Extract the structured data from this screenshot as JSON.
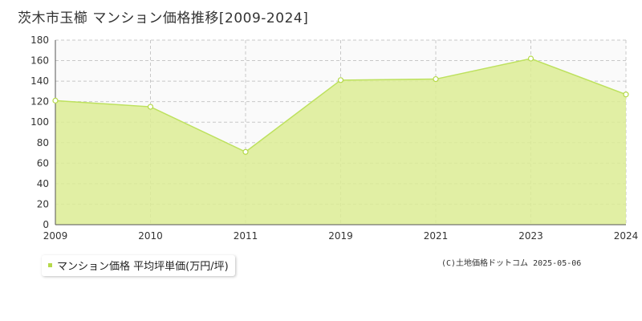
{
  "title": "茨木市玉櫛 マンション価格推移[2009-2024]",
  "legend": {
    "label": "マンション価格 平均坪単価(万円/坪)"
  },
  "credit": "(C)土地価格ドットコム 2025-05-06",
  "colors": {
    "area": "#dcec94",
    "line": "#bde15e",
    "marker": "#b5d94a",
    "grid": "#c8c8c8",
    "plot_bg": "#fafafa"
  },
  "chart_data": {
    "type": "area",
    "categories": [
      "2009",
      "2010",
      "2011",
      "2019",
      "2021",
      "2023",
      "2024"
    ],
    "series": [
      {
        "name": "マンション価格 平均坪単価(万円/坪)",
        "values": [
          121,
          115,
          71,
          141,
          142,
          162,
          127
        ]
      }
    ],
    "yticks": [
      "0",
      "20",
      "40",
      "60",
      "80",
      "100",
      "120",
      "140",
      "160",
      "180"
    ],
    "ylim": [
      0,
      180
    ],
    "grid": true,
    "legend_position": "bottom-left"
  }
}
